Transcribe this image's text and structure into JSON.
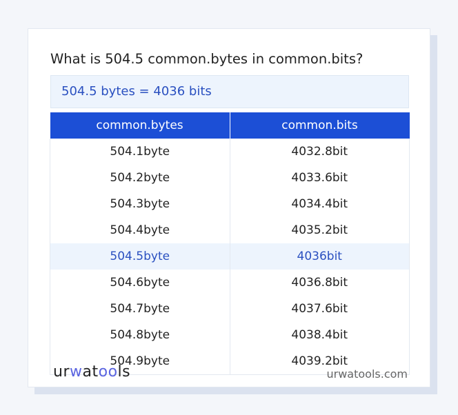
{
  "title": "What is 504.5 common.bytes in common.bits?",
  "result": "504.5 bytes = 4036 bits",
  "table": {
    "headers": [
      "common.bytes",
      "common.bits"
    ],
    "rows": [
      [
        "504.1byte",
        "4032.8bit"
      ],
      [
        "504.2byte",
        "4033.6bit"
      ],
      [
        "504.3byte",
        "4034.4bit"
      ],
      [
        "504.4byte",
        "4035.2bit"
      ],
      [
        "504.5byte",
        "4036bit"
      ],
      [
        "504.6byte",
        "4036.8bit"
      ],
      [
        "504.7byte",
        "4037.6bit"
      ],
      [
        "504.8byte",
        "4038.4bit"
      ],
      [
        "504.9byte",
        "4039.2bit"
      ]
    ],
    "highlighted_row": 4
  },
  "footer": {
    "logo": "urwatools",
    "site": "urwatools.com"
  },
  "colors": {
    "accent": "#1c4fd6",
    "highlight_text": "#2a50c0",
    "highlight_bg": "#edf4fd"
  }
}
